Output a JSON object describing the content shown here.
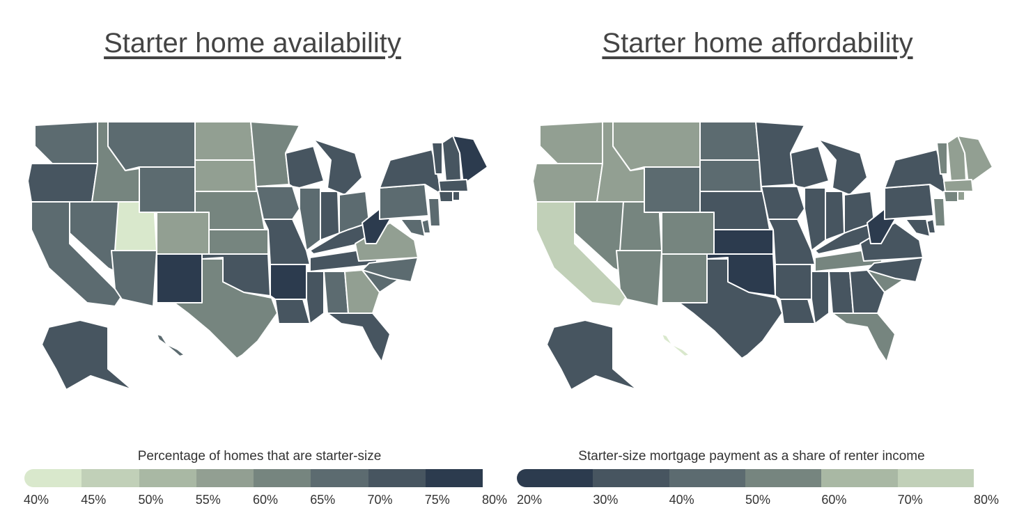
{
  "palette": [
    "#d9e8cc",
    "#c1d0b8",
    "#a9b8a4",
    "#929f92",
    "#76857f",
    "#5c6b70",
    "#475560",
    "#2c3b4e"
  ],
  "availability": {
    "title": "Starter home availability",
    "legend_title": "Percentage of homes that are starter-size",
    "ticks": [
      "40%",
      "45%",
      "50%",
      "55%",
      "60%",
      "65%",
      "70%",
      "75%",
      "80%"
    ],
    "bins": [
      0,
      1,
      2,
      3,
      4,
      5,
      6,
      7
    ]
  },
  "affordability": {
    "title": "Starter home affordability",
    "legend_title": "Starter-size mortgage payment as a share of renter income",
    "ticks": [
      "20%",
      "30%",
      "40%",
      "50%",
      "60%",
      "70%",
      "80%"
    ],
    "bins": [
      7,
      6,
      5,
      4,
      2,
      1,
      0
    ]
  },
  "chart_data": [
    {
      "type": "choropleth",
      "title": "Starter home availability",
      "legend_title": "Percentage of homes that are starter-size",
      "bin_edges": [
        "40%",
        "45%",
        "50%",
        "55%",
        "60%",
        "65%",
        "70%",
        "75%",
        "80%"
      ],
      "bin_colors": [
        "#d9e8cc",
        "#c1d0b8",
        "#a9b8a4",
        "#929f92",
        "#76857f",
        "#5c6b70",
        "#475560",
        "#2c3b4e"
      ],
      "state_bins": {
        "WA": 5,
        "OR": 6,
        "CA": 5,
        "ID": 4,
        "NV": 5,
        "UT": 0,
        "AZ": 5,
        "MT": 5,
        "WY": 5,
        "CO": 3,
        "NM": 7,
        "ND": 3,
        "SD": 3,
        "NE": 4,
        "KS": 4,
        "OK": 6,
        "TX": 4,
        "MN": 4,
        "IA": 5,
        "MO": 6,
        "AR": 7,
        "LA": 6,
        "WI": 6,
        "IL": 5,
        "IN": 6,
        "MI": 6,
        "OH": 5,
        "KY": 6,
        "TN": 6,
        "MS": 6,
        "AL": 5,
        "GA": 3,
        "FL": 6,
        "SC": 5,
        "NC": 5,
        "VA": 3,
        "WV": 7,
        "PA": 5,
        "NY": 6,
        "ME": 7,
        "VT": 6,
        "NH": 6,
        "MA": 6,
        "CT": 6,
        "RI": 6,
        "NJ": 5,
        "DE": 5,
        "MD": 5,
        "AK": 6,
        "HI": 5
      }
    },
    {
      "type": "choropleth",
      "title": "Starter home affordability",
      "legend_title": "Starter-size mortgage payment as a share of renter income",
      "bin_edges": [
        "20%",
        "30%",
        "40%",
        "50%",
        "60%",
        "70%",
        "80%"
      ],
      "bin_colors": [
        "#2c3b4e",
        "#475560",
        "#5c6b70",
        "#76857f",
        "#929f92",
        "#c1d0b8",
        "#d9e8cc"
      ],
      "state_bins": {
        "WA": 4,
        "OR": 4,
        "CA": 5,
        "ID": 4,
        "NV": 3,
        "UT": 3,
        "AZ": 3,
        "MT": 4,
        "WY": 2,
        "CO": 3,
        "NM": 3,
        "ND": 2,
        "SD": 2,
        "NE": 1,
        "KS": 0,
        "OK": 0,
        "TX": 1,
        "MN": 1,
        "IA": 1,
        "MO": 1,
        "AR": 1,
        "LA": 1,
        "WI": 1,
        "IL": 1,
        "IN": 1,
        "MI": 1,
        "OH": 1,
        "KY": 1,
        "TN": 3,
        "MS": 1,
        "AL": 1,
        "GA": 1,
        "FL": 3,
        "SC": 3,
        "NC": 1,
        "VA": 1,
        "WV": 0,
        "PA": 1,
        "NY": 1,
        "ME": 4,
        "VT": 3,
        "NH": 4,
        "MA": 4,
        "CT": 3,
        "RI": 4,
        "NJ": 3,
        "DE": 1,
        "MD": 1,
        "AK": 1,
        "HI": 6
      }
    }
  ]
}
